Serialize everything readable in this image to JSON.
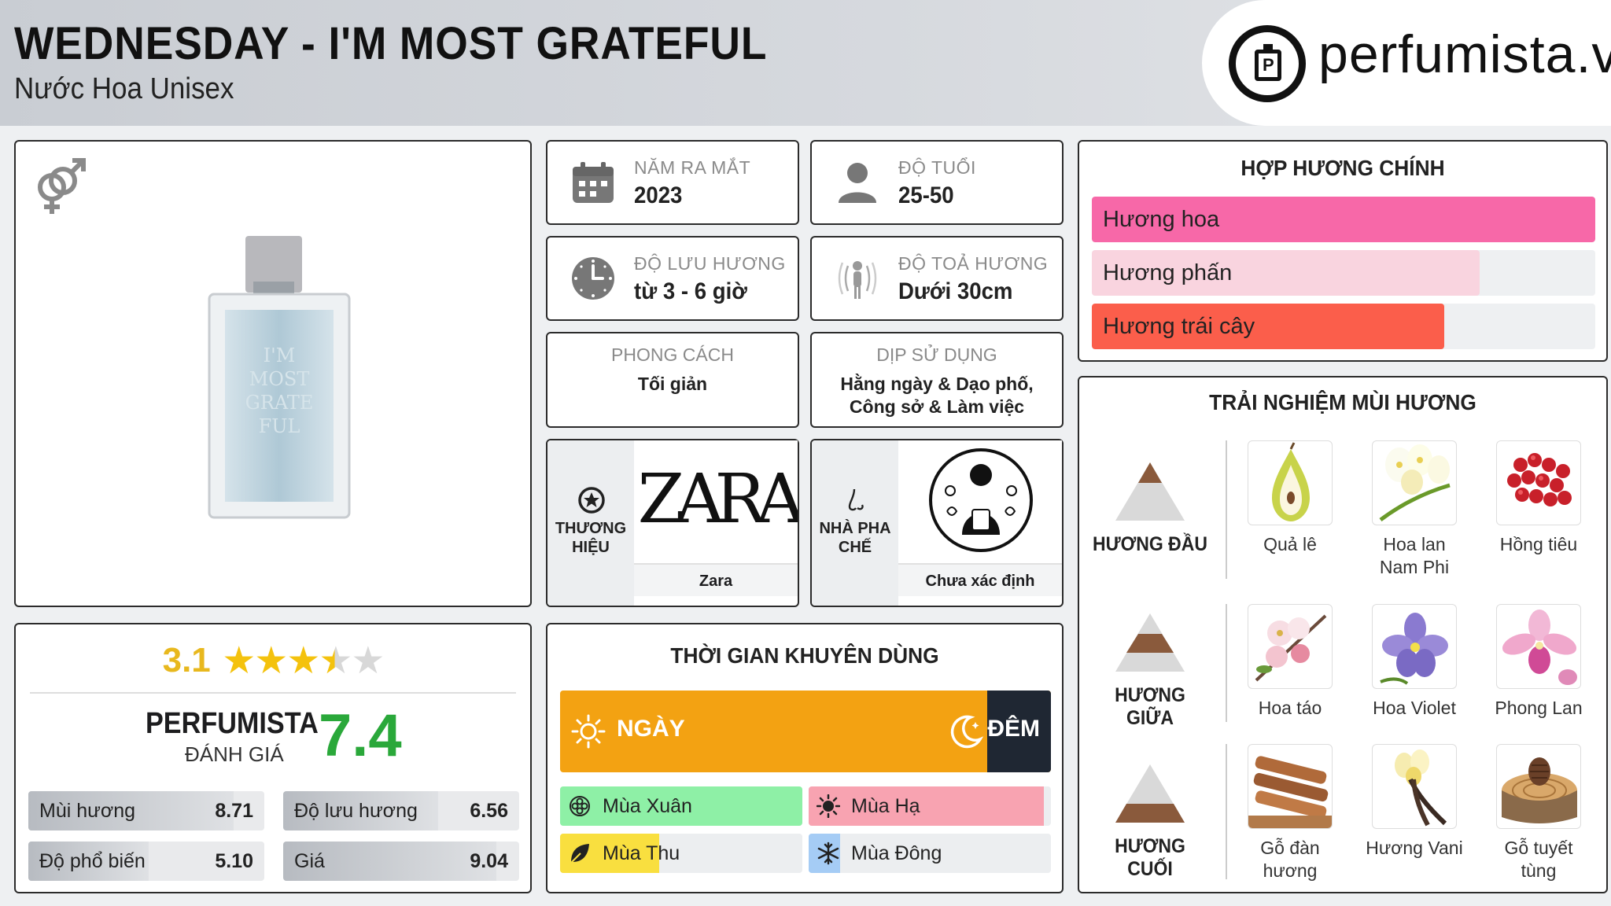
{
  "header": {
    "title": "WEDNESDAY - I'M MOST GRATEFUL",
    "subtitle": "Nước Hoa Unisex",
    "logo_text": "perfumista.vn"
  },
  "product": {
    "gender_icon": "male-female-icon",
    "bottle_text": "I'M MOST GRATEFUL"
  },
  "rating": {
    "value": "3.1",
    "stars": 3.1,
    "perfumista_label": "PERFUMISTA",
    "perfumista_sub": "ĐÁNH GIÁ",
    "perfumista_score": "7.4",
    "metrics": [
      {
        "label": "Mùi hương",
        "value": "8.71",
        "fraction": 0.871
      },
      {
        "label": "Độ lưu hương",
        "value": "6.56",
        "fraction": 0.656
      },
      {
        "label": "Độ phổ biến",
        "value": "5.10",
        "fraction": 0.51
      },
      {
        "label": "Giá",
        "value": "9.04",
        "fraction": 0.904
      }
    ]
  },
  "info": {
    "release": {
      "label": "NĂM RA MẮT",
      "value": "2023",
      "icon": "calendar-icon"
    },
    "age": {
      "label": "ĐỘ TUỔI",
      "value": "25-50",
      "icon": "person-icon"
    },
    "longevity": {
      "label": "ĐỘ LƯU HƯƠNG",
      "value": "từ 3 - 6 giờ",
      "icon": "clock-icon"
    },
    "sillage": {
      "label": "ĐỘ TOẢ HƯƠNG",
      "value": "Dưới 30cm",
      "icon": "sillage-icon"
    },
    "style": {
      "label": "PHONG CÁCH",
      "value": "Tối giản"
    },
    "occasion": {
      "label": "DỊP SỬ DỤNG",
      "value": "Hằng ngày & Dạo phố, Công sở & Làm việc"
    },
    "brand": {
      "label": "THƯƠNG HIỆU",
      "name": "Zara",
      "logo_text": "ZARA",
      "icon": "star-badge-icon"
    },
    "perfumer": {
      "label": "NHÀ PHA CHẾ",
      "name": "Chưa xác định",
      "icon": "nose-icon"
    }
  },
  "accords": {
    "title": "HỢP HƯƠNG CHÍNH",
    "items": [
      {
        "label": "Hương hoa",
        "fraction": 1.0,
        "color": "#f768a8"
      },
      {
        "label": "Hương phấn",
        "fraction": 0.77,
        "color": "#f9d4df"
      },
      {
        "label": "Hương trái cây",
        "fraction": 0.7,
        "color": "#fb5e4b"
      }
    ]
  },
  "time": {
    "title": "THỜI GIAN KHUYÊN DÙNG",
    "day_label": "NGÀY",
    "night_label": "ĐÊM",
    "day_fraction": 0.87,
    "seasons": [
      {
        "label": "Mùa Xuân",
        "fraction": 1.0,
        "color": "#8ef0a6",
        "icon": "flower-icon"
      },
      {
        "label": "Mùa Hạ",
        "fraction": 0.97,
        "color": "#f8a3b1",
        "icon": "sun-icon"
      },
      {
        "label": "Mùa Thu",
        "fraction": 0.41,
        "color": "#f9df3f",
        "icon": "leaf-icon"
      },
      {
        "label": "Mùa Đông",
        "fraction": 0.13,
        "color": "#a5ccf5",
        "icon": "snowflake-icon"
      }
    ]
  },
  "pyramid": {
    "title": "TRẢI NGHIỆM MÙI HƯƠNG",
    "tiers": [
      {
        "label": "HƯƠNG ĐẦU",
        "notes": [
          {
            "label": "Quả lê",
            "icon": "pear-icon"
          },
          {
            "label": "Hoa lan Nam Phi",
            "icon": "freesia-icon"
          },
          {
            "label": "Hồng tiêu",
            "icon": "pink-pepper-icon"
          }
        ]
      },
      {
        "label": "HƯƠNG GIỮA",
        "notes": [
          {
            "label": "Hoa táo",
            "icon": "apple-blossom-icon"
          },
          {
            "label": "Hoa Violet",
            "icon": "violet-icon"
          },
          {
            "label": "Phong Lan",
            "icon": "orchid-icon"
          }
        ]
      },
      {
        "label": "HƯƠNG CUỐI",
        "notes": [
          {
            "label": "Gỗ đàn hương",
            "icon": "sandalwood-icon"
          },
          {
            "label": "Hương Vani",
            "icon": "vanilla-icon"
          },
          {
            "label": "Gỗ tuyết tùng",
            "icon": "cedar-icon"
          }
        ]
      }
    ]
  }
}
